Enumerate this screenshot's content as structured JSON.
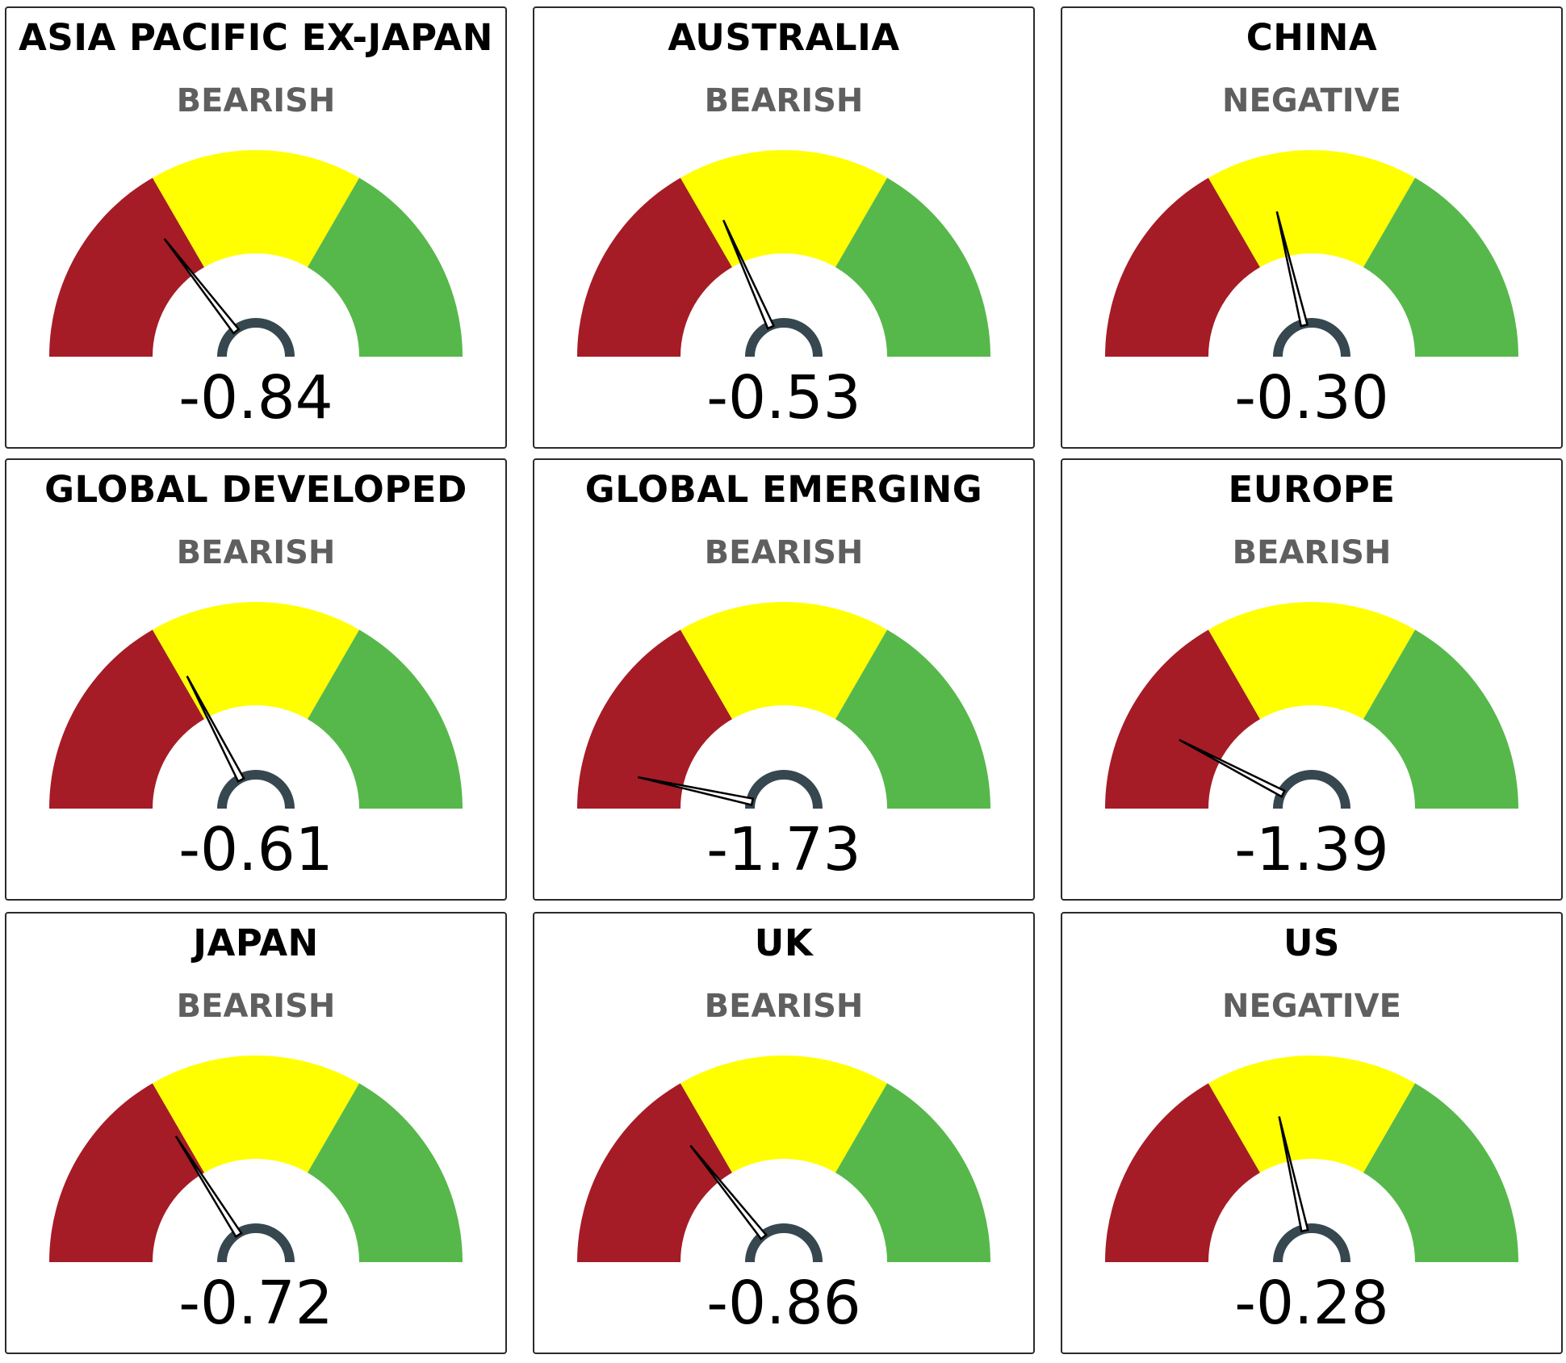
{
  "colors": {
    "bear_zone": "#a51c26",
    "neutral_zone": "#ffff00",
    "bull_zone": "#56b84a",
    "hub": "#37474f",
    "needle": "#000000",
    "status_text": "#5f5f5f"
  },
  "chart_data": {
    "type": "gauge",
    "range": [
      -2,
      2
    ],
    "zones": [
      {
        "from": -2,
        "to": -0.667,
        "color": "#a51c26"
      },
      {
        "from": -0.667,
        "to": 0.667,
        "color": "#ffff00"
      },
      {
        "from": 0.667,
        "to": 2,
        "color": "#56b84a"
      }
    ],
    "gauges": [
      {
        "title": "ASIA PACIFIC EX-JAPAN",
        "status": "BEARISH",
        "value": -0.84,
        "value_label": "-0.84"
      },
      {
        "title": "AUSTRALIA",
        "status": "BEARISH",
        "value": -0.53,
        "value_label": "-0.53"
      },
      {
        "title": "CHINA",
        "status": "NEGATIVE",
        "value": -0.3,
        "value_label": "-0.30"
      },
      {
        "title": "GLOBAL DEVELOPED",
        "status": "BEARISH",
        "value": -0.61,
        "value_label": "-0.61"
      },
      {
        "title": "GLOBAL EMERGING",
        "status": "BEARISH",
        "value": -1.73,
        "value_label": "-1.73"
      },
      {
        "title": "EUROPE",
        "status": "BEARISH",
        "value": -1.39,
        "value_label": "-1.39"
      },
      {
        "title": "JAPAN",
        "status": "BEARISH",
        "value": -0.72,
        "value_label": "-0.72"
      },
      {
        "title": "UK",
        "status": "BEARISH",
        "value": -0.86,
        "value_label": "-0.86"
      },
      {
        "title": "US",
        "status": "NEGATIVE",
        "value": -0.28,
        "value_label": "-0.28"
      }
    ]
  }
}
